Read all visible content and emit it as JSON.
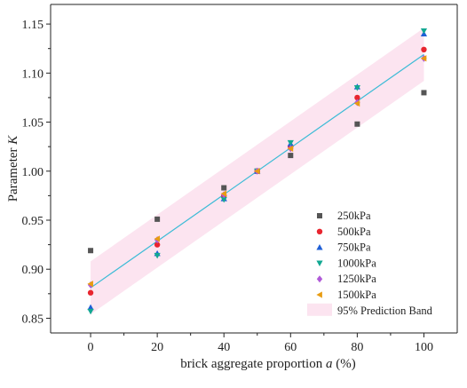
{
  "chart_data": {
    "type": "scatter",
    "xlabel_text": "brick aggregate proportion",
    "xlabel_symbol": "a",
    "xlabel_unit": "(%)",
    "ylabel_text": "Parameter",
    "ylabel_symbol": "K",
    "xlim": [
      -12,
      110
    ],
    "ylim": [
      0.835,
      1.17
    ],
    "xticks": [
      0,
      20,
      40,
      60,
      80,
      100
    ],
    "yticks": [
      0.85,
      0.9,
      0.95,
      1.0,
      1.05,
      1.1,
      1.15
    ],
    "ytick_labels": [
      "0.85",
      "0.90",
      "0.95",
      "1.00",
      "1.05",
      "1.10",
      "1.15"
    ],
    "grid": false,
    "legend_position": "lower-right",
    "series": [
      {
        "name": "250kPa",
        "marker": "square",
        "color": "#555555",
        "x": [
          0,
          20,
          40,
          50,
          60,
          80,
          100
        ],
        "y": [
          0.919,
          0.951,
          0.983,
          1.0,
          1.016,
          1.048,
          1.08
        ]
      },
      {
        "name": "500kPa",
        "marker": "circle",
        "color": "#e8252f",
        "x": [
          0,
          20,
          40,
          50,
          60,
          80,
          100
        ],
        "y": [
          0.876,
          0.925,
          0.975,
          1.0,
          1.025,
          1.075,
          1.124
        ]
      },
      {
        "name": "750kPa",
        "marker": "triangle-up",
        "color": "#1f5fd6",
        "x": [
          0,
          20,
          40,
          50,
          60,
          80,
          100
        ],
        "y": [
          0.861,
          0.916,
          0.972,
          1.0,
          1.028,
          1.086,
          1.14
        ]
      },
      {
        "name": "1000kPa",
        "marker": "triangle-down",
        "color": "#12a892",
        "x": [
          0,
          20,
          40,
          50,
          60,
          80,
          100
        ],
        "y": [
          0.857,
          0.914,
          0.971,
          1.0,
          1.029,
          1.085,
          1.143
        ]
      },
      {
        "name": "1250kPa",
        "marker": "diamond",
        "color": "#b05ad8",
        "x": [
          0,
          20,
          40,
          50,
          60,
          80,
          100
        ],
        "y": [
          0.884,
          0.93,
          0.976,
          1.0,
          1.023,
          1.07,
          1.115
        ]
      },
      {
        "name": "1500kPa",
        "marker": "triangle-left",
        "color": "#e89c12",
        "x": [
          0,
          20,
          40,
          50,
          60,
          80,
          100
        ],
        "y": [
          0.885,
          0.931,
          0.977,
          1.0,
          1.023,
          1.069,
          1.115
        ]
      }
    ],
    "fit_line": {
      "x": [
        0,
        100
      ],
      "y": [
        0.881,
        1.119
      ],
      "color": "#3bbbd6"
    },
    "prediction_band": {
      "name": "95% Prediction Band",
      "color": "#fce4f0",
      "x": [
        0,
        100
      ],
      "upper": [
        0.908,
        1.146
      ],
      "lower": [
        0.854,
        1.092
      ]
    }
  }
}
